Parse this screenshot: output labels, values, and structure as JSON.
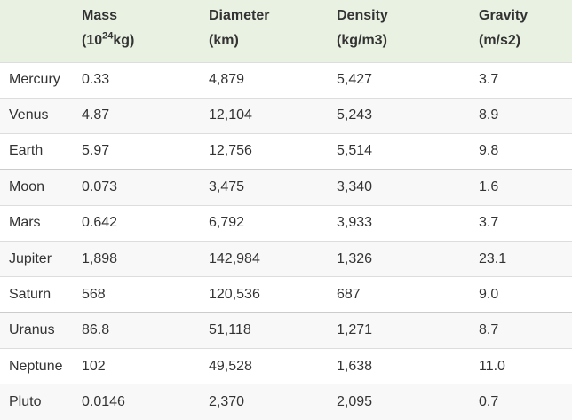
{
  "table": {
    "header": [
      {
        "line1": "Mass",
        "unit_pre": "(10",
        "unit_sup": "24",
        "unit_post": "kg)"
      },
      {
        "line1": "Diameter",
        "unit": "(km)"
      },
      {
        "line1": "Density",
        "unit": "(kg/m3)"
      },
      {
        "line1": "Gravity",
        "unit": "(m/s2)"
      }
    ],
    "rows": [
      [
        "Mercury",
        "0.33",
        "4,879",
        "5,427",
        "3.7"
      ],
      [
        "Venus",
        "4.87",
        "12,104",
        "5,243",
        "8.9"
      ],
      [
        "Earth",
        "5.97",
        "12,756",
        "5,514",
        "9.8"
      ],
      [
        "Moon",
        "0.073",
        "3,475",
        "3,340",
        "1.6"
      ],
      [
        "Mars",
        "0.642",
        "6,792",
        "3,933",
        "3.7"
      ],
      [
        "Jupiter",
        "1,898",
        "142,984",
        "1,326",
        "23.1"
      ],
      [
        "Saturn",
        "568",
        "120,536",
        "687",
        "9.0"
      ],
      [
        "Uranus",
        "86.8",
        "51,118",
        "1,271",
        "8.7"
      ],
      [
        "Neptune",
        "102",
        "49,528",
        "1,638",
        "11.0"
      ],
      [
        "Pluto",
        "0.0146",
        "2,370",
        "2,095",
        "0.7"
      ]
    ]
  }
}
